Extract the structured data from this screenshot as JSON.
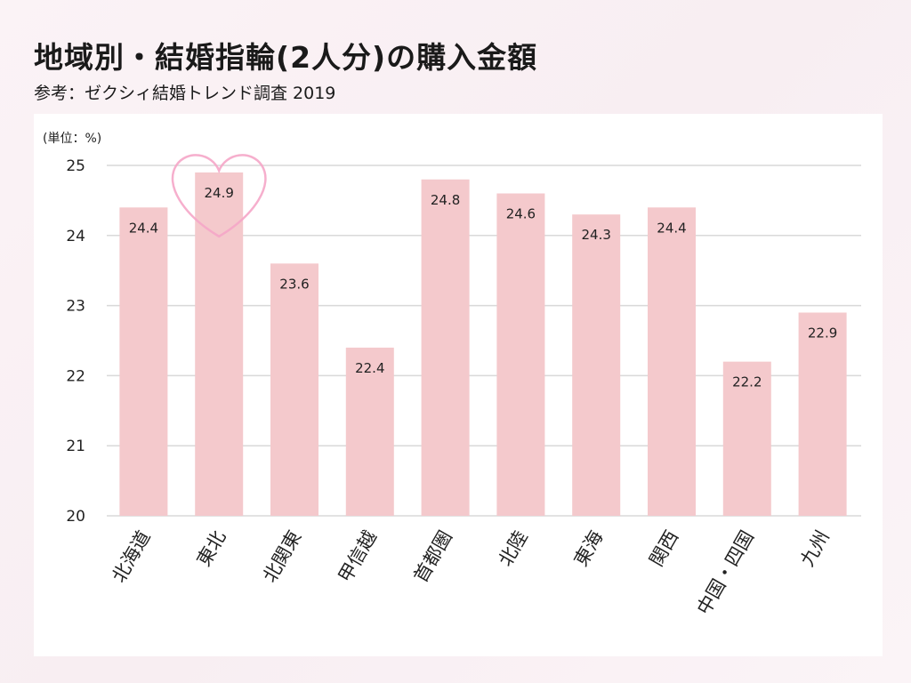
{
  "header": {
    "title": "地域別・結婚指輪(2人分)の購入金額",
    "subtitle": "参考：ゼクシィ結婚トレンド調査 2019"
  },
  "chart_data": {
    "type": "bar",
    "unit_label": "(単位：%)",
    "categories": [
      "北海道",
      "東北",
      "北関東",
      "甲信越",
      "首都圏",
      "北陸",
      "東海",
      "関西",
      "中国・四国",
      "九州"
    ],
    "values": [
      24.4,
      24.9,
      23.6,
      22.4,
      24.8,
      24.6,
      24.3,
      24.4,
      22.2,
      22.9
    ],
    "data_labels": [
      "24.4",
      "24.9",
      "23.6",
      "22.4",
      "24.8",
      "24.6",
      "24.3",
      "24.4",
      "22.2",
      "22.9"
    ],
    "ylim": [
      20,
      25
    ],
    "yticks": [
      20,
      21,
      22,
      23,
      24,
      25
    ],
    "grid": true,
    "highlight_index": 1,
    "colors": {
      "bar": "#f4c9cc",
      "grid": "#d9d9d9",
      "heart": "#f5a6c8",
      "text": "#222222"
    }
  }
}
